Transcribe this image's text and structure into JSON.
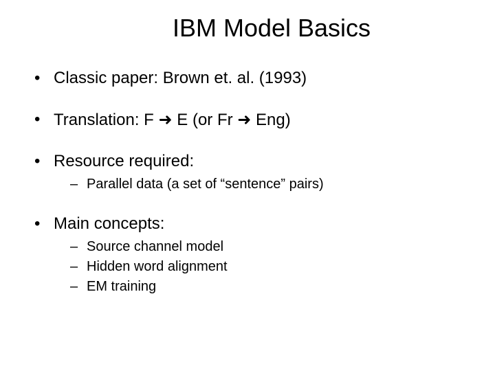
{
  "title": "IBM Model Basics",
  "bullets": {
    "b1": "Classic paper: Brown et. al. (1993)",
    "b2": "Translation: F ➜ E  (or Fr ➜ Eng)",
    "b3": "Resource required:",
    "b3_sub": {
      "s1": "Parallel data (a set of “sentence” pairs)"
    },
    "b4": "Main concepts:",
    "b4_sub": {
      "s1": "Source channel model",
      "s2": "Hidden word alignment",
      "s3": "EM training"
    }
  },
  "style": {
    "background_color": "#ffffff",
    "text_color": "#000000",
    "title_fontsize": 36,
    "bullet_fontsize": 24,
    "sub_bullet_fontsize": 20,
    "font_family": "Arial"
  }
}
